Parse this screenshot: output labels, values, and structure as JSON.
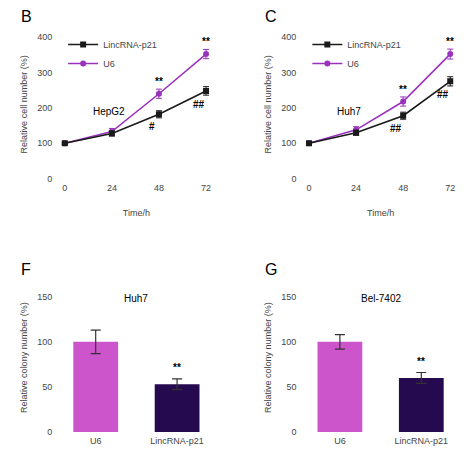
{
  "chart_data": [
    {
      "type": "line",
      "title": "B",
      "subtitle": "HepG2",
      "xlabel": "Time/h",
      "ylabel": "Relative cell number (%)",
      "x": [
        0,
        24,
        48,
        72
      ],
      "series": [
        {
          "name": "LincRNA-p21",
          "color": "#1a1a1a",
          "marker": "square",
          "values": [
            100,
            128,
            182,
            248
          ],
          "errors": [
            3,
            7,
            10,
            12
          ]
        },
        {
          "name": "U6",
          "color": "#9933bb",
          "marker": "circle",
          "values": [
            100,
            133,
            240,
            352
          ],
          "errors": [
            4,
            9,
            13,
            13
          ]
        }
      ],
      "xlim": [
        -5,
        78
      ],
      "xticks": [
        0,
        24,
        48,
        72
      ],
      "ylim": [
        0,
        420
      ],
      "yticks": [
        0,
        100,
        200,
        300,
        400
      ],
      "annotations": [
        {
          "x": 48,
          "y": 253,
          "text": "**"
        },
        {
          "x": 72,
          "y": 365,
          "text": "**"
        },
        {
          "x": 48,
          "y": 168,
          "text": "#"
        },
        {
          "x": 72,
          "y": 232,
          "text": "##"
        }
      ],
      "legend": "upper left",
      "grid": false
    },
    {
      "type": "line",
      "title": "C",
      "subtitle": "Huh7",
      "xlabel": "Time/h",
      "ylabel": "Relative cell number (%)",
      "x": [
        0,
        24,
        48,
        72
      ],
      "series": [
        {
          "name": "LincRNA-p21",
          "color": "#1a1a1a",
          "marker": "square",
          "values": [
            100,
            130,
            178,
            275
          ],
          "errors": [
            3,
            7,
            10,
            13
          ]
        },
        {
          "name": "U6",
          "color": "#9933bb",
          "marker": "circle",
          "values": [
            100,
            138,
            218,
            352
          ],
          "errors": [
            4,
            9,
            13,
            14
          ]
        }
      ],
      "xlim": [
        -5,
        78
      ],
      "xticks": [
        0,
        24,
        48,
        72
      ],
      "ylim": [
        0,
        420
      ],
      "yticks": [
        0,
        100,
        200,
        300,
        400
      ],
      "annotations": [
        {
          "x": 48,
          "y": 231,
          "text": "**"
        },
        {
          "x": 72,
          "y": 366,
          "text": "**"
        },
        {
          "x": 48,
          "y": 164,
          "text": "##"
        },
        {
          "x": 72,
          "y": 258,
          "text": "##"
        }
      ],
      "legend": "upper left",
      "grid": false
    },
    {
      "type": "bar",
      "title": "F",
      "subtitle": "Huh7",
      "ylabel": "Relative colony number (%)",
      "categories": [
        "U6",
        "LincRNA-p21"
      ],
      "values": [
        100,
        53
      ],
      "errors": [
        13,
        6
      ],
      "colors": [
        "#cc55cc",
        "#250a50"
      ],
      "ylim": [
        0,
        165
      ],
      "yticks": [
        0,
        50,
        100,
        150
      ],
      "annotations": [
        {
          "x": "LincRNA-p21",
          "y": 63,
          "text": "**"
        }
      ],
      "grid": false
    },
    {
      "type": "bar",
      "title": "G",
      "subtitle": "Bel-7402",
      "ylabel": "Relative colony number (%)",
      "categories": [
        "U6",
        "LincRNA-p21"
      ],
      "values": [
        100,
        60
      ],
      "errors": [
        8,
        6
      ],
      "colors": [
        "#cc55cc",
        "#250a50"
      ],
      "ylim": [
        0,
        165
      ],
      "yticks": [
        0,
        50,
        100,
        150
      ],
      "annotations": [
        {
          "x": "LincRNA-p21",
          "y": 70,
          "text": "**"
        }
      ],
      "grid": false
    }
  ]
}
